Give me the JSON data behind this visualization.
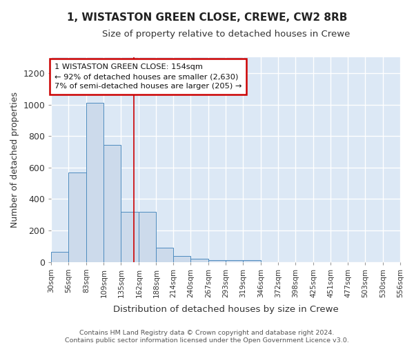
{
  "title1": "1, WISTASTON GREEN CLOSE, CREWE, CW2 8RB",
  "title2": "Size of property relative to detached houses in Crewe",
  "xlabel": "Distribution of detached houses by size in Crewe",
  "ylabel": "Number of detached properties",
  "bin_edges": [
    30,
    56,
    83,
    109,
    135,
    162,
    188,
    214,
    240,
    267,
    293,
    319,
    346,
    372,
    398,
    425,
    451,
    477,
    503,
    530,
    556
  ],
  "bar_heights": [
    65,
    570,
    1010,
    745,
    320,
    320,
    92,
    40,
    20,
    10,
    10,
    10,
    0,
    0,
    0,
    0,
    0,
    0,
    0,
    0
  ],
  "bar_color": "#ccdaeb",
  "bar_edge_color": "#4d8bbf",
  "red_line_x": 154,
  "annotation_text": "1 WISTASTON GREEN CLOSE: 154sqm\n← 92% of detached houses are smaller (2,630)\n7% of semi-detached houses are larger (205) →",
  "annotation_box_color": "#ffffff",
  "annotation_box_edge": "#cc0000",
  "ylim": [
    0,
    1300
  ],
  "yticks": [
    0,
    200,
    400,
    600,
    800,
    1000,
    1200
  ],
  "plot_bg_color": "#dce8f5",
  "grid_color": "#ffffff",
  "fig_bg_color": "#ffffff",
  "footer_text": "Contains HM Land Registry data © Crown copyright and database right 2024.\nContains public sector information licensed under the Open Government Licence v3.0."
}
